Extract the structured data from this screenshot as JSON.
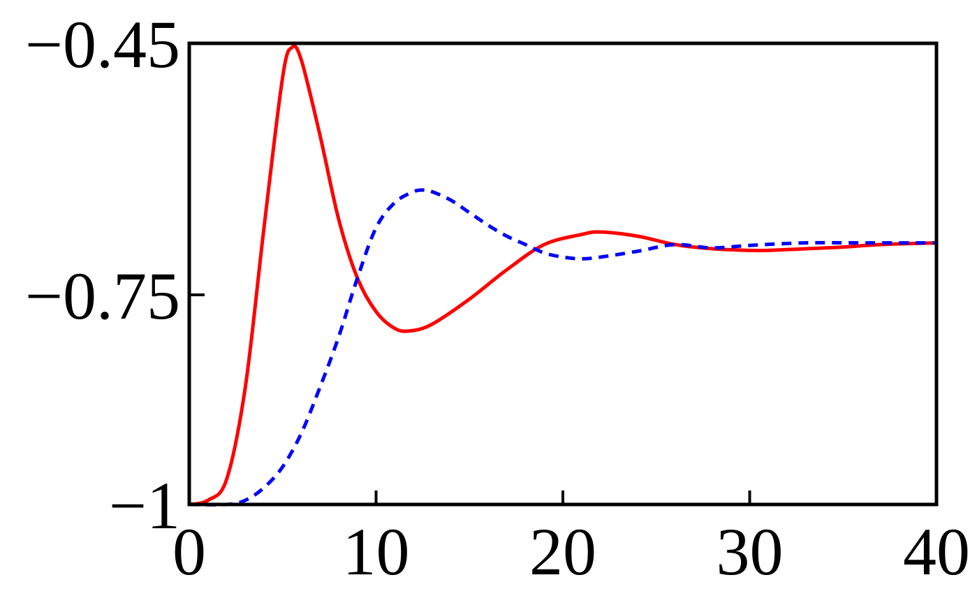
{
  "chart_data": {
    "type": "line",
    "title": "",
    "xlabel": "",
    "ylabel": "",
    "xlim": [
      0,
      40
    ],
    "ylim": [
      -1,
      -0.45
    ],
    "x_ticks": [
      0,
      10,
      20,
      30,
      40
    ],
    "x_tick_labels": [
      "0",
      "10",
      "20",
      "30",
      "40"
    ],
    "y_ticks": [
      -1,
      -0.75,
      -0.45
    ],
    "y_tick_labels": [
      "−1",
      "−0.75",
      "−0.45"
    ],
    "grid": false,
    "legend": "none",
    "series": [
      {
        "style": "solid",
        "color": "#ff0000",
        "x": [
          0,
          1,
          2,
          3,
          4,
          5,
          5.5,
          6,
          7,
          8,
          9,
          10,
          11,
          11.8,
          13,
          15,
          17,
          19,
          21,
          22,
          24,
          26,
          28,
          30,
          31,
          33,
          35,
          37,
          40
        ],
        "y": [
          -1.0,
          -0.995,
          -0.97,
          -0.86,
          -0.67,
          -0.49,
          -0.455,
          -0.47,
          -0.56,
          -0.66,
          -0.73,
          -0.77,
          -0.79,
          -0.793,
          -0.785,
          -0.755,
          -0.72,
          -0.69,
          -0.678,
          -0.675,
          -0.68,
          -0.69,
          -0.695,
          -0.697,
          -0.697,
          -0.695,
          -0.693,
          -0.69,
          -0.688
        ]
      },
      {
        "style": "dotted",
        "color": "#0000ff",
        "x": [
          0,
          2,
          3,
          4,
          5,
          6,
          7,
          8,
          9,
          10,
          11,
          12,
          12.5,
          13,
          14,
          15,
          16,
          17,
          18,
          19,
          20,
          21,
          22,
          24,
          26,
          28,
          30,
          33,
          36,
          40
        ],
        "y": [
          -1.0,
          -1.0,
          -0.995,
          -0.98,
          -0.955,
          -0.915,
          -0.86,
          -0.8,
          -0.73,
          -0.67,
          -0.64,
          -0.627,
          -0.625,
          -0.627,
          -0.637,
          -0.652,
          -0.667,
          -0.68,
          -0.69,
          -0.7,
          -0.705,
          -0.707,
          -0.705,
          -0.698,
          -0.69,
          -0.694,
          -0.691,
          -0.688,
          -0.688,
          -0.688
        ]
      }
    ]
  }
}
